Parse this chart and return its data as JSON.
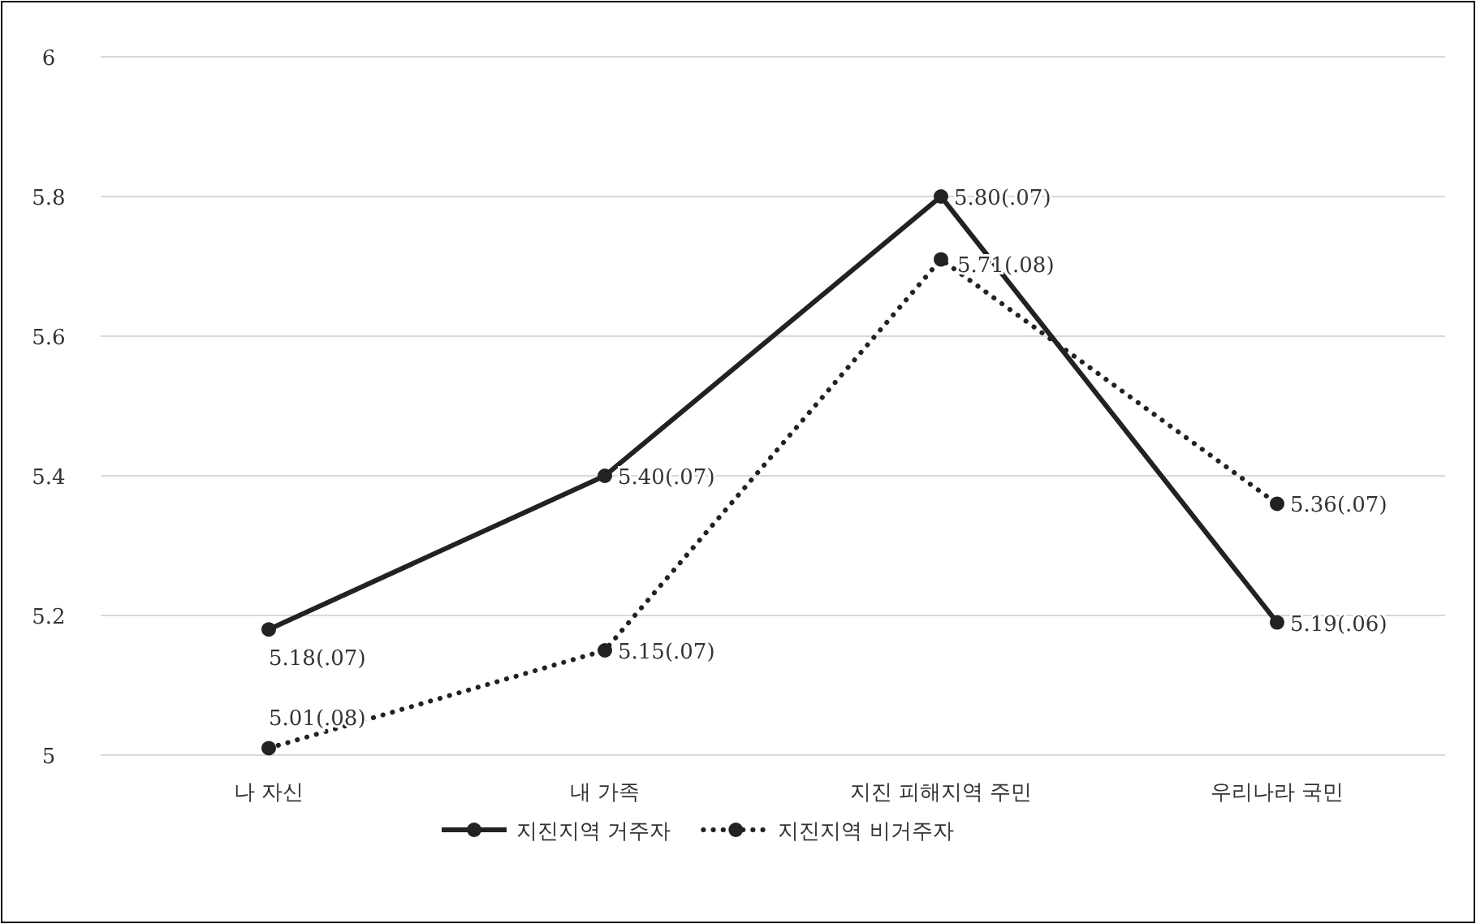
{
  "chart_data": {
    "type": "line",
    "categories": [
      "나 자신",
      "내 가족",
      "지진 피해지역 주민",
      "우리나라 국민"
    ],
    "series": [
      {
        "name": "지진지역 거주자",
        "color": "#222222",
        "line_style": "solid",
        "values": [
          5.18,
          5.4,
          5.8,
          5.19
        ],
        "value_labels": [
          "5.18(.07)",
          "5.40(.07)",
          "5.80(.07)",
          "5.19(.06)"
        ]
      },
      {
        "name": "지진지역 비거주자",
        "color": "#222222",
        "line_style": "dotted",
        "values": [
          5.01,
          5.15,
          5.71,
          5.36
        ],
        "value_labels": [
          "5.01(.08)",
          "5.15(.07)",
          "5.71(.08)",
          "5.36(.07)"
        ]
      }
    ],
    "ylim": [
      5,
      6
    ],
    "yticks": [
      5,
      5.2,
      5.4,
      5.6,
      5.8,
      6
    ],
    "grid": "y",
    "legend": "bottom",
    "marker": "circle"
  }
}
